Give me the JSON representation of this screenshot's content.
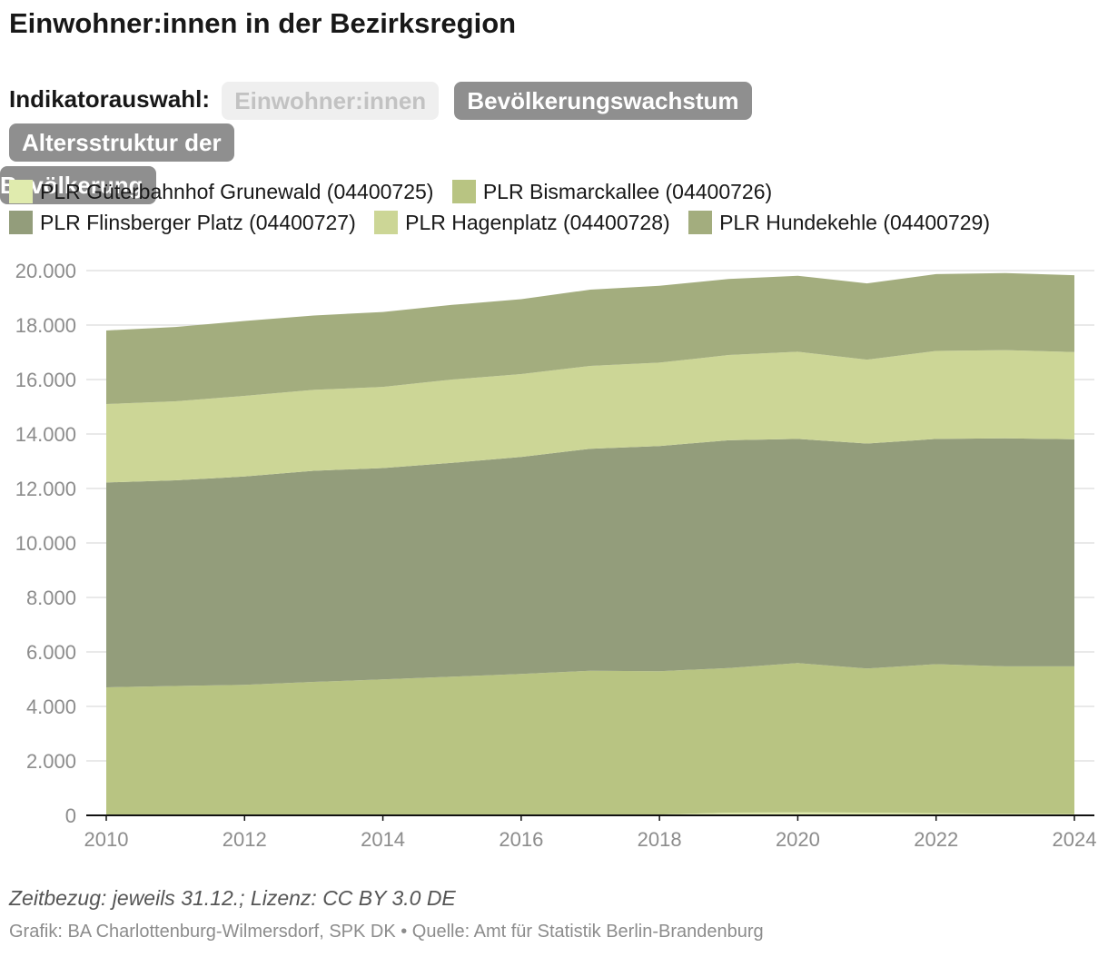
{
  "header": {
    "title": "Einwohner:innen in der Bezirksregion"
  },
  "indicator": {
    "label": "Indikatorauswahl:",
    "options": [
      "Einwohner:innen",
      "Bevölkerungswachstum",
      "Altersstruktur der",
      "Bevölkerung"
    ],
    "selected": "Einwohner:innen"
  },
  "footer": {
    "note": "Zeitbezug: jeweils 31.12.; Lizenz: CC BY 3.0 DE",
    "source": "Grafik: BA Charlottenburg-Wilmersdorf, SPK DK • Quelle: Amt für Statistik Berlin-Brandenburg"
  },
  "chart_data": {
    "type": "area",
    "stacked": true,
    "title": "Einwohner:innen in der Bezirksregion",
    "x": [
      2010,
      2011,
      2012,
      2013,
      2014,
      2015,
      2016,
      2017,
      2018,
      2019,
      2020,
      2021,
      2022,
      2023,
      2024
    ],
    "xticks": [
      "2010",
      "2012",
      "2014",
      "2016",
      "2018",
      "2020",
      "2022",
      "2024"
    ],
    "yticks": [
      "0",
      "2.000",
      "4.000",
      "6.000",
      "8.000",
      "10.000",
      "12.000",
      "14.000",
      "16.000",
      "18.000",
      "20.000"
    ],
    "ylim": [
      0,
      20000
    ],
    "grid": true,
    "legend_position": "top",
    "series": [
      {
        "name": "PLR Güterbahnhof Grunewald (04400725)",
        "color": "#e0ebae",
        "values": [
          5,
          5,
          5,
          10,
          10,
          10,
          15,
          20,
          30,
          100,
          110,
          100,
          80,
          60,
          50
        ]
      },
      {
        "name": "PLR Bismarckallee (04400726)",
        "color": "#b8c482",
        "values": [
          4695,
          4745,
          4785,
          4890,
          4980,
          5080,
          5175,
          5290,
          5260,
          5310,
          5480,
          5290,
          5470,
          5410,
          5420
        ]
      },
      {
        "name": "PLR Flinsberger Platz (04400727)",
        "color": "#939d7b",
        "values": [
          7520,
          7550,
          7650,
          7750,
          7760,
          7850,
          7970,
          8150,
          8270,
          8360,
          8230,
          8260,
          8270,
          8370,
          8340
        ]
      },
      {
        "name": "PLR Hagenplatz (04400728)",
        "color": "#ccd696",
        "values": [
          2880,
          2900,
          2960,
          2970,
          2980,
          3060,
          3040,
          3040,
          3060,
          3130,
          3200,
          3080,
          3230,
          3240,
          3200
        ]
      },
      {
        "name": "PLR Hundekehle (04400729)",
        "color": "#a3ad7e",
        "values": [
          2700,
          2730,
          2750,
          2730,
          2750,
          2740,
          2750,
          2800,
          2820,
          2790,
          2790,
          2800,
          2820,
          2830,
          2820
        ]
      }
    ]
  }
}
